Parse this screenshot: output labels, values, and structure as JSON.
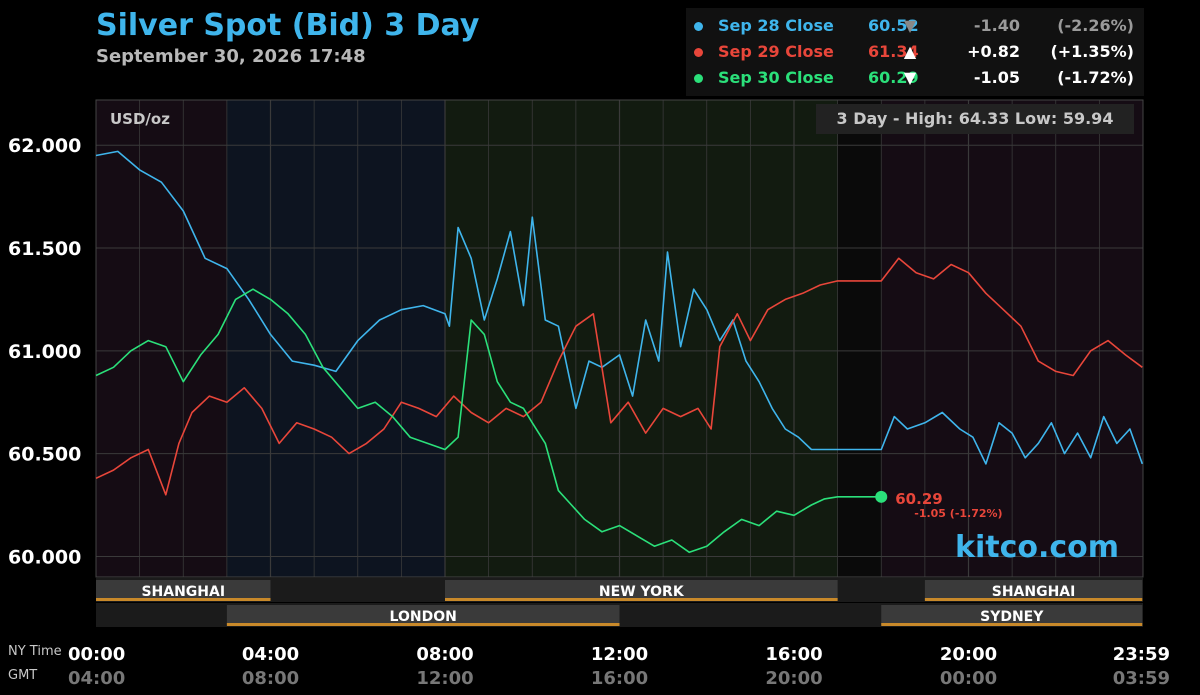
{
  "title": "Silver Spot (Bid) 3 Day",
  "subtitle": "September 30, 2026 17:48",
  "unit": "USD/oz",
  "range_label": "3 Day - High: 64.33  Low: 59.94",
  "watermark": "kitco.com",
  "legend": [
    {
      "label": "Sep 28 Close",
      "price": "60.52",
      "arrow": "▼",
      "change": "-1.40",
      "pct": "(-2.26%)",
      "color": "#3fb5ec",
      "arrow_color": "#888888",
      "chg_color": "#9a9a9a"
    },
    {
      "label": "Sep 29 Close",
      "price": "61.34",
      "arrow": "▲",
      "change": "+0.82",
      "pct": "(+1.35%)",
      "color": "#e8463a",
      "arrow_color": "#ffffff",
      "chg_color": "#ffffff"
    },
    {
      "label": "Sep 30 Close",
      "price": "60.29",
      "arrow": "▼",
      "change": "-1.05",
      "pct": "(-1.72%)",
      "color": "#2be07a",
      "arrow_color": "#ffffff",
      "chg_color": "#ffffff"
    }
  ],
  "last_point": {
    "price": "60.29",
    "change": "-1.05 (-1.72%)"
  },
  "axis_row_labels": {
    "ny": "NY Time",
    "gmt": "GMT"
  },
  "colors": {
    "sep28": "#3fb5ec",
    "sep29": "#e8463a",
    "sep30": "#2be07a",
    "grid": "#3a3a3a",
    "session_bar": "#c8892a"
  },
  "chart_data": {
    "type": "line",
    "ylim": [
      59.9,
      62.22
    ],
    "xlim": [
      0,
      24
    ],
    "y_ticks": [
      60.0,
      60.5,
      61.0,
      61.5,
      62.0
    ],
    "y_tick_labels": [
      "60.000",
      "60.500",
      "61.000",
      "61.500",
      "62.000"
    ],
    "x_ticks": [
      0,
      4,
      8,
      12,
      16,
      20,
      23.983
    ],
    "x_tick_labels_ny": [
      "00:00",
      "04:00",
      "08:00",
      "12:00",
      "16:00",
      "20:00",
      "23:59"
    ],
    "x_tick_labels_gmt": [
      "04:00",
      "08:00",
      "12:00",
      "16:00",
      "20:00",
      "00:00",
      "03:59"
    ],
    "sessions_row1": [
      {
        "name": "SHANGHAI",
        "start": 0,
        "end": 4
      },
      {
        "name": "NEW YORK",
        "start": 8,
        "end": 17
      },
      {
        "name": "SHANGHAI",
        "start": 19,
        "end": 23.983
      }
    ],
    "sessions_row2": [
      {
        "name": "LONDON",
        "start": 3,
        "end": 12
      },
      {
        "name": "SYDNEY",
        "start": 18,
        "end": 23.983
      }
    ],
    "series": [
      {
        "name": "Sep 28 Close",
        "x": [
          0,
          0.5,
          1,
          1.5,
          2,
          2.5,
          3,
          3.5,
          4,
          4.5,
          5,
          5.5,
          6,
          6.5,
          7,
          7.5,
          8,
          8.1,
          8.3,
          8.6,
          8.9,
          9.2,
          9.5,
          9.8,
          10,
          10.3,
          10.6,
          11,
          11.3,
          11.6,
          12,
          12.3,
          12.6,
          12.9,
          13.1,
          13.4,
          13.7,
          14,
          14.3,
          14.6,
          14.9,
          15.2,
          15.5,
          15.8,
          16.1,
          16.4,
          16.7,
          17,
          17.5,
          18,
          18.3,
          18.6,
          19,
          19.4,
          19.8,
          20.1,
          20.4,
          20.7,
          21,
          21.3,
          21.6,
          21.9,
          22.2,
          22.5,
          22.8,
          23.1,
          23.4,
          23.7,
          23.983
        ],
        "y": [
          61.95,
          61.97,
          61.88,
          61.82,
          61.68,
          61.45,
          61.4,
          61.25,
          61.08,
          60.95,
          60.93,
          60.9,
          61.05,
          61.15,
          61.2,
          61.22,
          61.18,
          61.12,
          61.6,
          61.45,
          61.15,
          61.35,
          61.58,
          61.22,
          61.65,
          61.15,
          61.12,
          60.72,
          60.95,
          60.92,
          60.98,
          60.78,
          61.15,
          60.95,
          61.48,
          61.02,
          61.3,
          61.2,
          61.05,
          61.15,
          60.95,
          60.85,
          60.72,
          60.62,
          60.58,
          60.52,
          60.52,
          60.52,
          60.52,
          60.52,
          60.68,
          60.62,
          60.65,
          60.7,
          60.62,
          60.58,
          60.45,
          60.65,
          60.6,
          60.48,
          60.55,
          60.65,
          60.5,
          60.6,
          60.48,
          60.68,
          60.55,
          60.62,
          60.45
        ]
      },
      {
        "name": "Sep 29 Close",
        "x": [
          0,
          0.4,
          0.8,
          1.2,
          1.6,
          1.9,
          2.2,
          2.6,
          3,
          3.4,
          3.8,
          4.2,
          4.6,
          5,
          5.4,
          5.8,
          6.2,
          6.6,
          7,
          7.4,
          7.8,
          8.2,
          8.6,
          9,
          9.4,
          9.8,
          10.2,
          10.6,
          11,
          11.4,
          11.8,
          12.2,
          12.6,
          13,
          13.4,
          13.8,
          14.1,
          14.3,
          14.7,
          15,
          15.4,
          15.8,
          16.2,
          16.6,
          17,
          17.5,
          18,
          18.4,
          18.8,
          19.2,
          19.6,
          20,
          20.4,
          20.8,
          21.2,
          21.6,
          22,
          22.4,
          22.8,
          23.2,
          23.6,
          23.983
        ],
        "y": [
          60.38,
          60.42,
          60.48,
          60.52,
          60.3,
          60.55,
          60.7,
          60.78,
          60.75,
          60.82,
          60.72,
          60.55,
          60.65,
          60.62,
          60.58,
          60.5,
          60.55,
          60.62,
          60.75,
          60.72,
          60.68,
          60.78,
          60.7,
          60.65,
          60.72,
          60.68,
          60.75,
          60.95,
          61.12,
          61.18,
          60.65,
          60.75,
          60.6,
          60.72,
          60.68,
          60.72,
          60.62,
          61.02,
          61.18,
          61.05,
          61.2,
          61.25,
          61.28,
          61.32,
          61.34,
          61.34,
          61.34,
          61.45,
          61.38,
          61.35,
          61.42,
          61.38,
          61.28,
          61.2,
          61.12,
          60.95,
          60.9,
          60.88,
          61.0,
          61.05,
          60.98,
          60.92
        ]
      },
      {
        "name": "Sep 30 Close",
        "x": [
          0,
          0.4,
          0.8,
          1.2,
          1.6,
          2,
          2.4,
          2.8,
          3.2,
          3.6,
          4,
          4.4,
          4.8,
          5.2,
          5.6,
          6,
          6.4,
          6.8,
          7.2,
          7.6,
          8,
          8.3,
          8.6,
          8.9,
          9.2,
          9.5,
          9.8,
          10,
          10.3,
          10.6,
          10.9,
          11.2,
          11.6,
          12,
          12.4,
          12.8,
          13.2,
          13.6,
          14,
          14.4,
          14.8,
          15.2,
          15.6,
          16,
          16.4,
          16.7,
          17,
          17.5,
          18
        ],
        "y": [
          60.88,
          60.92,
          61.0,
          61.05,
          61.02,
          60.85,
          60.98,
          61.08,
          61.25,
          61.3,
          61.25,
          61.18,
          61.08,
          60.92,
          60.82,
          60.72,
          60.75,
          60.68,
          60.58,
          60.55,
          60.52,
          60.58,
          61.15,
          61.08,
          60.85,
          60.75,
          60.72,
          60.65,
          60.55,
          60.32,
          60.25,
          60.18,
          60.12,
          60.15,
          60.1,
          60.05,
          60.08,
          60.02,
          60.05,
          60.12,
          60.18,
          60.15,
          60.22,
          60.2,
          60.25,
          60.28,
          60.29,
          60.29,
          60.29
        ]
      }
    ]
  }
}
